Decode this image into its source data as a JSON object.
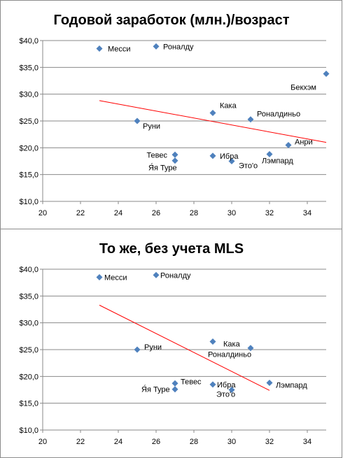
{
  "chart_data": [
    {
      "type": "scatter",
      "title": "Годовой заработок (млн.)/возраст",
      "xlabel": "",
      "ylabel": "",
      "xlim": [
        20,
        35
      ],
      "ylim": [
        10,
        40
      ],
      "x_ticks": [
        "20",
        "22",
        "24",
        "26",
        "28",
        "30",
        "32",
        "34"
      ],
      "y_ticks": [
        "$10,0",
        "$15,0",
        "$20,0",
        "$25,0",
        "$30,0",
        "$35,0",
        "$40,0"
      ],
      "grid": "horizontal",
      "marker_color": "#4f81bd",
      "trendline_color": "#ff0000",
      "trendline": {
        "x": [
          23,
          35
        ],
        "y": [
          28.8,
          21.0
        ]
      },
      "points": [
        {
          "label": "Месси",
          "x": 23,
          "y": 38.5
        },
        {
          "label": "Роналду",
          "x": 26,
          "y": 38.9
        },
        {
          "label": "Бекхэм",
          "x": 35,
          "y": 33.8
        },
        {
          "label": "Кака",
          "x": 29,
          "y": 26.5
        },
        {
          "label": "Роналдиньо",
          "x": 31,
          "y": 25.3
        },
        {
          "label": "Руни",
          "x": 25,
          "y": 25.0
        },
        {
          "label": "Анри",
          "x": 33,
          "y": 20.5
        },
        {
          "label": "Тевес",
          "x": 27,
          "y": 18.7
        },
        {
          "label": "Ибра",
          "x": 29,
          "y": 18.5
        },
        {
          "label": "Лэмпард",
          "x": 32,
          "y": 18.8
        },
        {
          "label": "Я́я Туре",
          "x": 27,
          "y": 17.6
        },
        {
          "label": "Это'о",
          "x": 30,
          "y": 17.5
        }
      ]
    },
    {
      "type": "scatter",
      "title": "То же, без учета MLS",
      "xlabel": "",
      "ylabel": "",
      "xlim": [
        20,
        35
      ],
      "ylim": [
        10,
        40
      ],
      "x_ticks": [
        "20",
        "22",
        "24",
        "26",
        "28",
        "30",
        "32",
        "34"
      ],
      "y_ticks": [
        "$10,0",
        "$15,0",
        "$20,0",
        "$25,0",
        "$30,0",
        "$35,0",
        "$40,0"
      ],
      "grid": "horizontal",
      "marker_color": "#4f81bd",
      "trendline_color": "#ff0000",
      "trendline": {
        "x": [
          23,
          32
        ],
        "y": [
          33.3,
          17.4
        ]
      },
      "points": [
        {
          "label": "Месси",
          "x": 23,
          "y": 38.5
        },
        {
          "label": "Роналду",
          "x": 26,
          "y": 38.9
        },
        {
          "label": "Кака",
          "x": 29,
          "y": 26.5
        },
        {
          "label": "Роналдиньо",
          "x": 31,
          "y": 25.3
        },
        {
          "label": "Руни",
          "x": 25,
          "y": 25.0
        },
        {
          "label": "Тевес",
          "x": 27,
          "y": 18.7
        },
        {
          "label": "Ибра",
          "x": 29,
          "y": 18.5
        },
        {
          "label": "Лэмпард",
          "x": 32,
          "y": 18.8
        },
        {
          "label": "Я́я Туре",
          "x": 27,
          "y": 17.6
        },
        {
          "label": "Это'о",
          "x": 30,
          "y": 17.5
        }
      ]
    }
  ]
}
